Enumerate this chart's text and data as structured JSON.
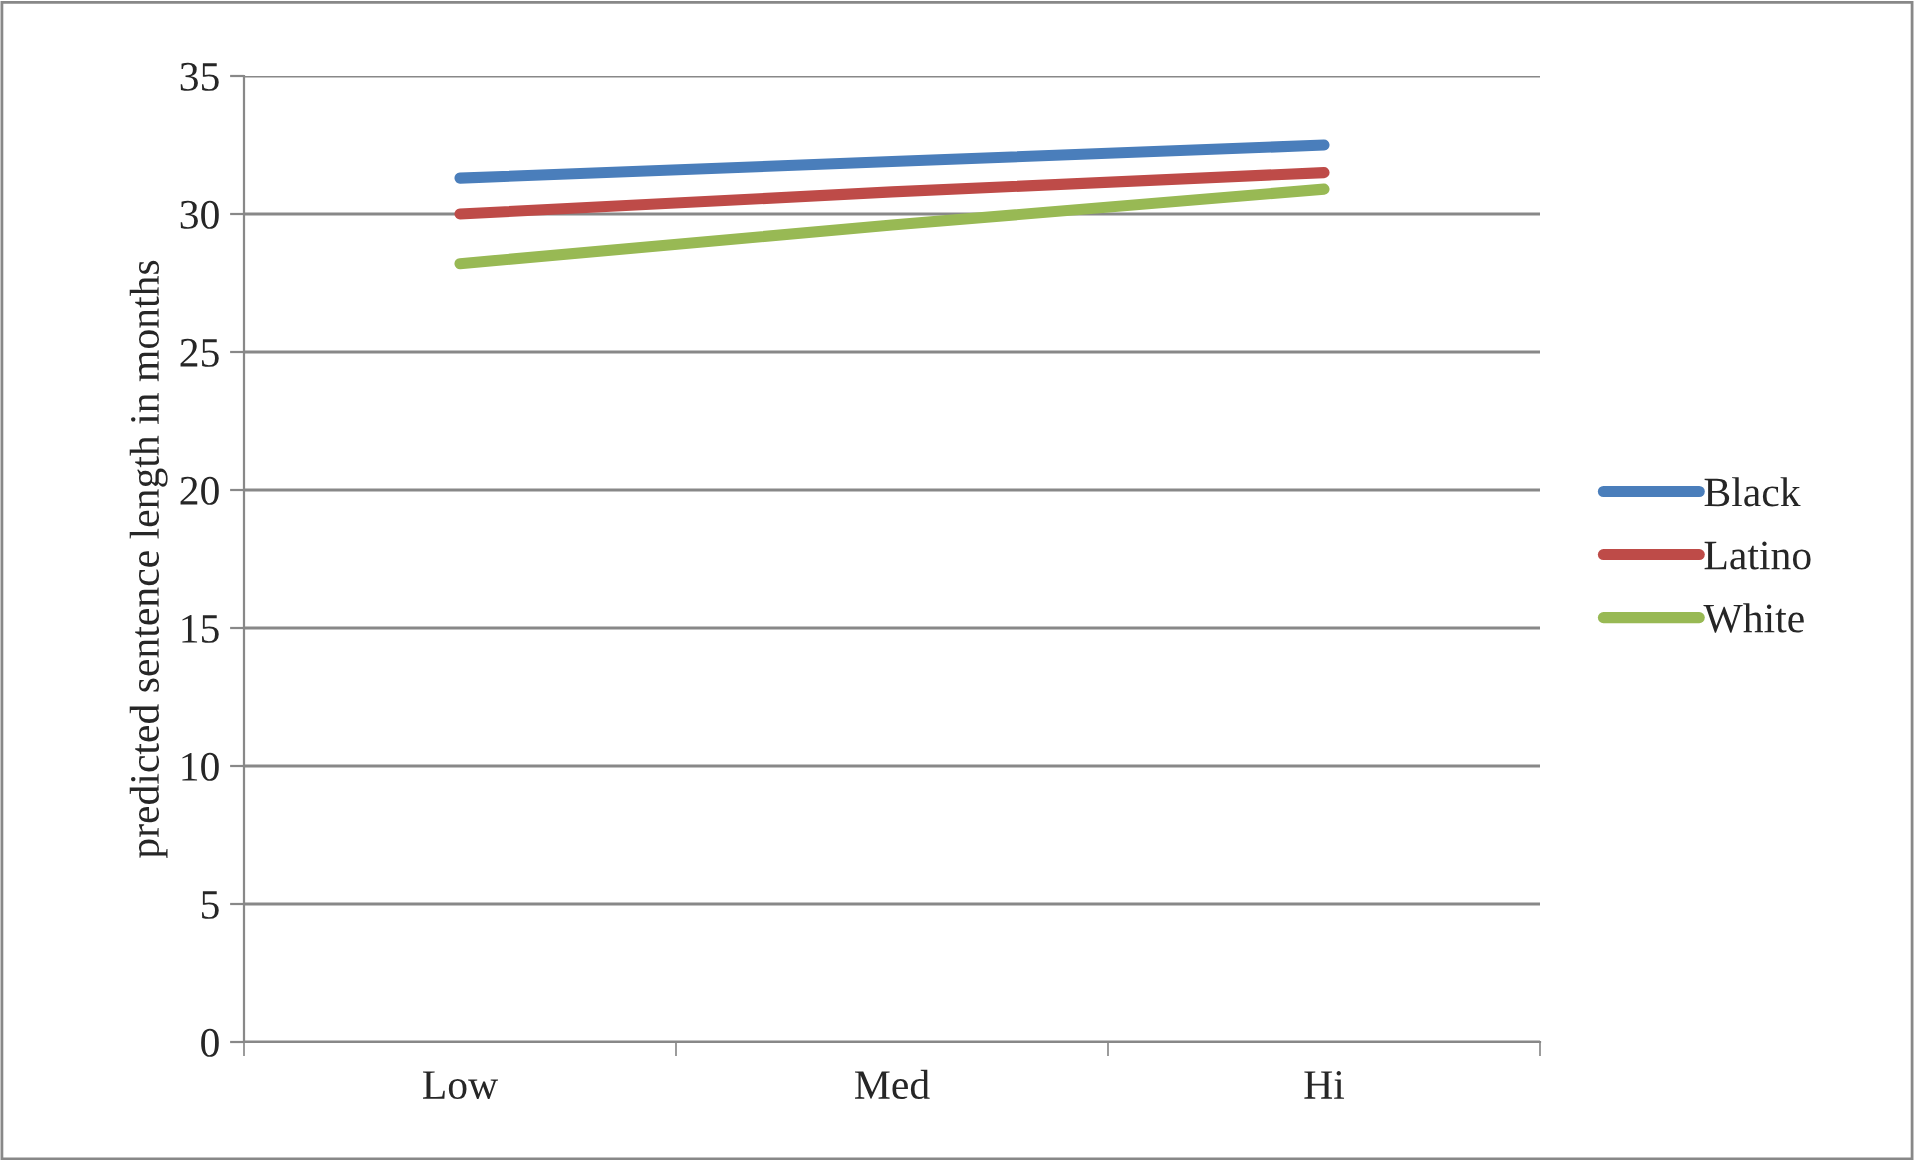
{
  "chart_data": {
    "type": "line",
    "ylabel": "predicted sentence length in months",
    "categories": [
      "Low",
      "Med",
      "Hi"
    ],
    "series": [
      {
        "name": "Black",
        "color": "#4a7ebb",
        "values": [
          31.3,
          31.9,
          32.5
        ]
      },
      {
        "name": "Latino",
        "color": "#be4b48",
        "values": [
          30.0,
          30.8,
          31.5
        ]
      },
      {
        "name": "White",
        "color": "#98b954",
        "values": [
          28.2,
          29.6,
          30.9
        ]
      }
    ],
    "ylim": [
      0,
      35
    ],
    "yticks": [
      0,
      5,
      10,
      15,
      20,
      25,
      30,
      35
    ],
    "grid": "y",
    "legend": "right",
    "marker": "none",
    "line_style": "solid"
  }
}
